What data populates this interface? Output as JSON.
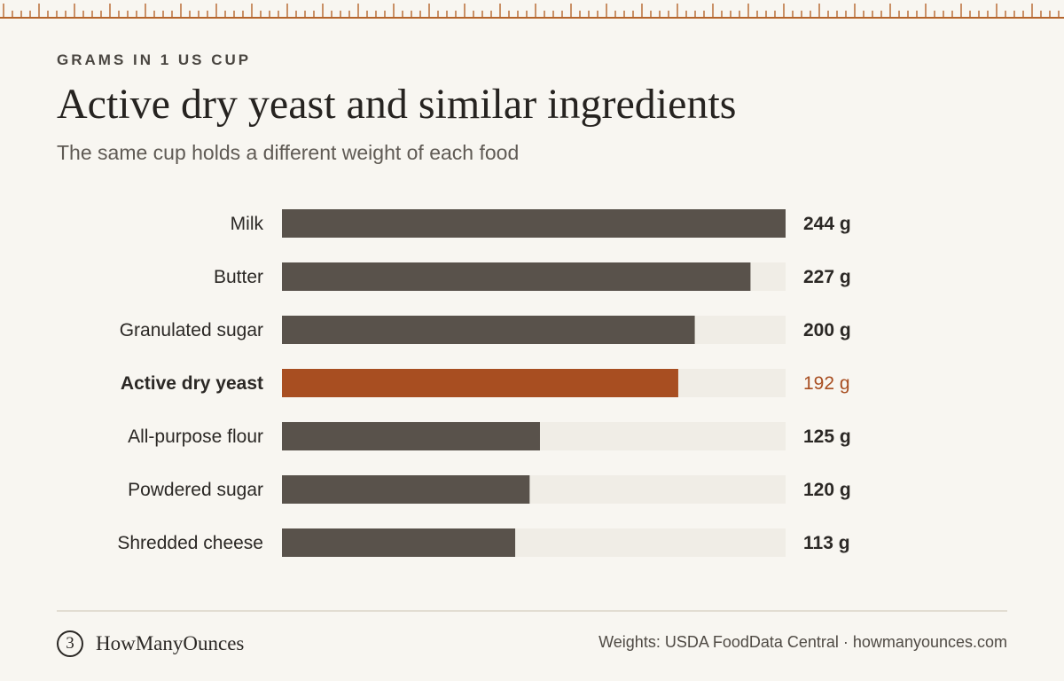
{
  "eyebrow": "GRAMS IN 1 US CUP",
  "title": "Active dry yeast and similar ingredients",
  "subtitle": "The same cup holds a different weight of each food",
  "chart_data": {
    "type": "bar",
    "orientation": "horizontal",
    "categories": [
      "Milk",
      "Butter",
      "Granulated sugar",
      "Active dry yeast",
      "All-purpose flour",
      "Powdered sugar",
      "Shredded cheese"
    ],
    "values": [
      244,
      227,
      200,
      192,
      125,
      120,
      113
    ],
    "value_labels": [
      "244 g",
      "227 g",
      "200 g",
      "192 g",
      "125 g",
      "120 g",
      "113 g"
    ],
    "highlight": "Active dry yeast",
    "xlim": [
      0,
      244
    ],
    "grid": false,
    "colors": {
      "bar": "#59524b",
      "highlight": "#a84e21",
      "track": "#f0ede6",
      "label": "#2b2825"
    }
  },
  "footer": {
    "brand_icon": "3",
    "brand_name": "HowManyOunces",
    "source": "Weights: USDA FoodData Central · howmanyounces.com"
  }
}
